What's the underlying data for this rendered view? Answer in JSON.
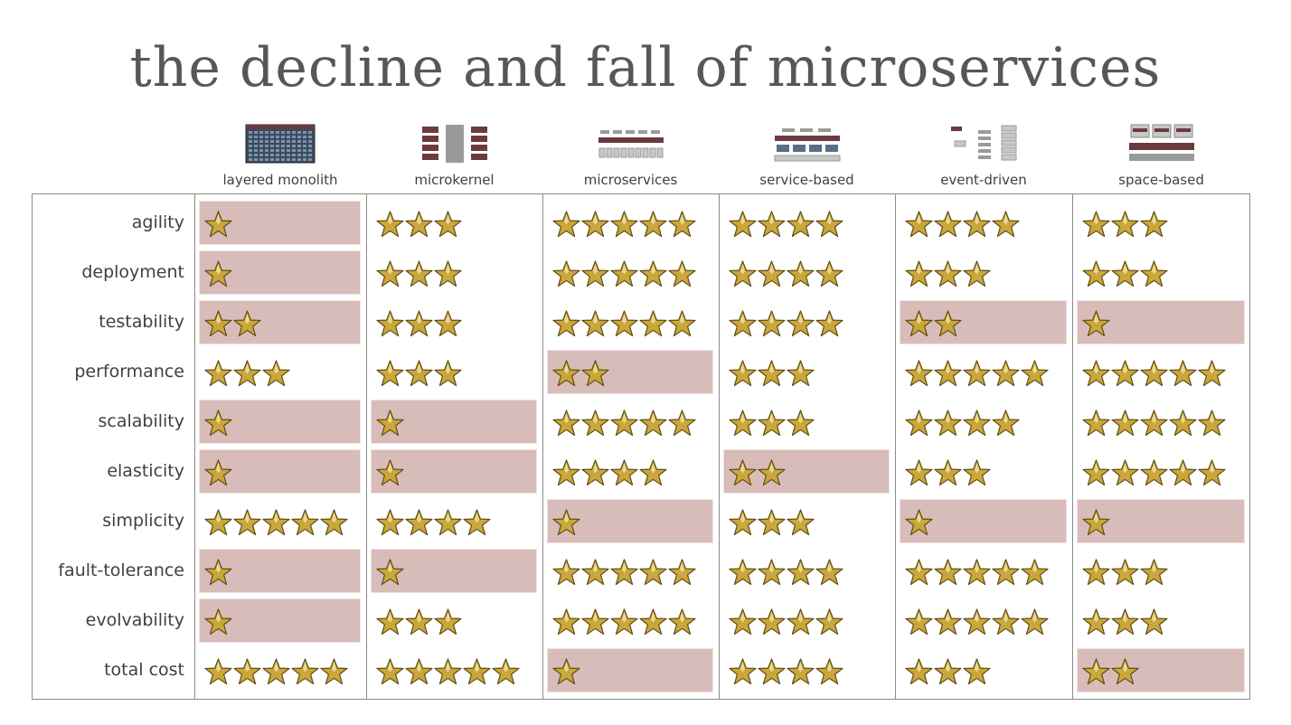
{
  "title": "the decline and fall of microservices",
  "colors": {
    "highlight": "#d8bcb9",
    "star": "#c9a73a",
    "grid": "#8c8c8c",
    "text": "#404040"
  },
  "columns": [
    {
      "key": "layered_monolith",
      "label": "layered monolith",
      "icon": "layered-architecture-diagram-icon"
    },
    {
      "key": "microkernel",
      "label": "microkernel",
      "icon": "microkernel-architecture-diagram-icon"
    },
    {
      "key": "microservices",
      "label": "microservices",
      "icon": "microservices-architecture-diagram-icon"
    },
    {
      "key": "service_based",
      "label": "service-based",
      "icon": "service-based-architecture-diagram-icon"
    },
    {
      "key": "event_driven",
      "label": "event-driven",
      "icon": "event-driven-architecture-diagram-icon"
    },
    {
      "key": "space_based",
      "label": "space-based",
      "icon": "space-based-architecture-diagram-icon"
    }
  ],
  "rows": [
    {
      "label": "agility",
      "ratings": [
        1,
        3,
        5,
        4,
        4,
        3
      ],
      "highlighted": [
        true,
        false,
        false,
        false,
        false,
        false
      ]
    },
    {
      "label": "deployment",
      "ratings": [
        1,
        3,
        5,
        4,
        3,
        3
      ],
      "highlighted": [
        true,
        false,
        false,
        false,
        false,
        false
      ]
    },
    {
      "label": "testability",
      "ratings": [
        2,
        3,
        5,
        4,
        2,
        1
      ],
      "highlighted": [
        true,
        false,
        false,
        false,
        true,
        true
      ]
    },
    {
      "label": "performance",
      "ratings": [
        3,
        3,
        2,
        3,
        5,
        5
      ],
      "highlighted": [
        false,
        false,
        true,
        false,
        false,
        false
      ]
    },
    {
      "label": "scalability",
      "ratings": [
        1,
        1,
        5,
        3,
        4,
        5
      ],
      "highlighted": [
        true,
        true,
        false,
        false,
        false,
        false
      ]
    },
    {
      "label": "elasticity",
      "ratings": [
        1,
        1,
        4,
        2,
        3,
        5
      ],
      "highlighted": [
        true,
        true,
        false,
        true,
        false,
        false
      ]
    },
    {
      "label": "simplicity",
      "ratings": [
        5,
        4,
        1,
        3,
        1,
        1
      ],
      "highlighted": [
        false,
        false,
        true,
        false,
        true,
        true
      ]
    },
    {
      "label": "fault-tolerance",
      "ratings": [
        1,
        1,
        5,
        4,
        5,
        3
      ],
      "highlighted": [
        true,
        true,
        false,
        false,
        false,
        false
      ]
    },
    {
      "label": "evolvability",
      "ratings": [
        1,
        3,
        5,
        4,
        5,
        3
      ],
      "highlighted": [
        true,
        false,
        false,
        false,
        false,
        false
      ]
    },
    {
      "label": "total cost",
      "ratings": [
        5,
        5,
        1,
        4,
        3,
        2
      ],
      "highlighted": [
        false,
        false,
        true,
        false,
        false,
        true
      ]
    }
  ]
}
